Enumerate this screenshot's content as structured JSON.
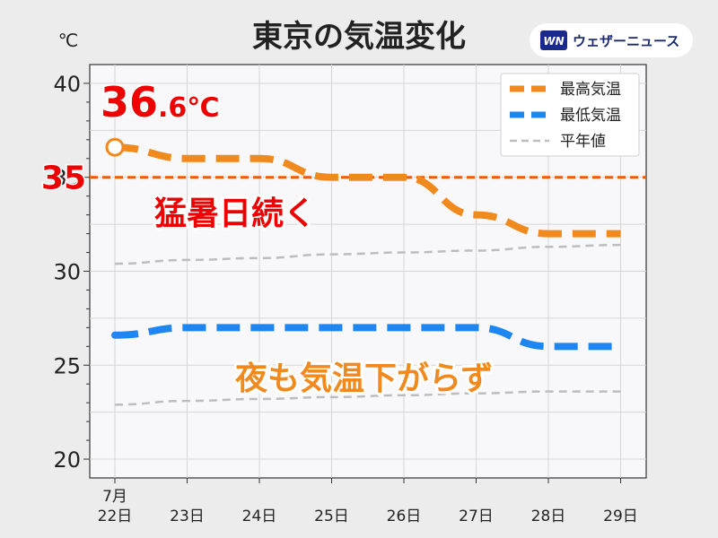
{
  "title": "東京の気温変化",
  "unit_label": "℃",
  "brand": {
    "logo_text": "WN",
    "name": "ウェザーニュース"
  },
  "peak_label": {
    "main": "36",
    "frac": ".6℃"
  },
  "threshold_label": "35",
  "annotations": {
    "hot_days": "猛暑日続く",
    "warm_nights": "夜も気温下がらず"
  },
  "month_label": "7月",
  "colors": {
    "high": "#f08a1e",
    "low": "#1e86f0",
    "normal": "#bdbdbd",
    "threshold": "#f05a00",
    "peak_text": "#ee0000",
    "saturday": "#1a4cff",
    "sunday": "#ff2a2a"
  },
  "chart_data": {
    "type": "line",
    "title": "東京の気温変化",
    "ylabel": "℃",
    "ylim": [
      19,
      41
    ],
    "yticks": [
      20,
      25,
      30,
      35,
      40
    ],
    "categories": [
      "22日",
      "23日",
      "24日",
      "25日",
      "26日",
      "27日",
      "28日",
      "29日"
    ],
    "category_colors": [
      "default",
      "default",
      "default",
      "default",
      "default",
      "saturday",
      "sunday",
      "default"
    ],
    "series": [
      {
        "name": "最高気温",
        "key": "high",
        "style": "dashed-thick",
        "values": [
          36.6,
          36,
          36,
          35,
          35,
          33,
          32,
          32
        ]
      },
      {
        "name": "最低気温",
        "key": "low",
        "style": "dashed-thick",
        "values": [
          26.6,
          27,
          27,
          27,
          27,
          27,
          26,
          26
        ]
      },
      {
        "name": "平年値",
        "key": "normal",
        "style": "dashed-thin",
        "values": [
          30.4,
          30.6,
          30.7,
          30.9,
          31.0,
          31.1,
          31.3,
          31.4
        ]
      },
      {
        "name": "",
        "key": "normal",
        "style": "dashed-thin",
        "values": [
          22.9,
          23.1,
          23.2,
          23.3,
          23.4,
          23.5,
          23.6,
          23.6
        ]
      }
    ],
    "threshold": 35,
    "grid": true,
    "legend": "top-right"
  }
}
